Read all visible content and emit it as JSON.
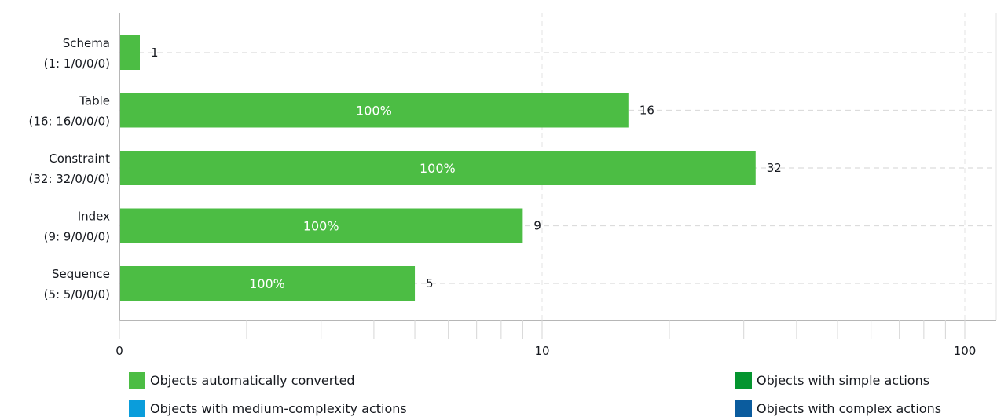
{
  "chart_data": {
    "type": "bar",
    "orientation": "horizontal",
    "x_scale": "log",
    "xlim": [
      1,
      100
    ],
    "x_ticks": [
      "0",
      "10",
      "100"
    ],
    "categories": [
      {
        "name": "Schema",
        "detail": "(1: 1/0/0/0)",
        "value": 1,
        "percent": ""
      },
      {
        "name": "Table",
        "detail": "(16: 16/0/0/0)",
        "value": 16,
        "percent": "100%"
      },
      {
        "name": "Constraint",
        "detail": "(32: 32/0/0/0)",
        "value": 32,
        "percent": "100%"
      },
      {
        "name": "Index",
        "detail": "(9: 9/0/0/0)",
        "value": 9,
        "percent": "100%"
      },
      {
        "name": "Sequence",
        "detail": "(5: 5/0/0/0)",
        "value": 5,
        "percent": "100%"
      }
    ],
    "grid": true,
    "legend_placement": "bottom",
    "legend": [
      {
        "label": "Objects automatically converted",
        "color": "#4cbd44"
      },
      {
        "label": "Objects with simple actions",
        "color": "#04952f"
      },
      {
        "label": "Objects with medium-complexity actions",
        "color": "#0a9ddb"
      },
      {
        "label": "Objects with complex actions",
        "color": "#0b5c9e"
      }
    ],
    "bar_color": "#4cbd44"
  }
}
